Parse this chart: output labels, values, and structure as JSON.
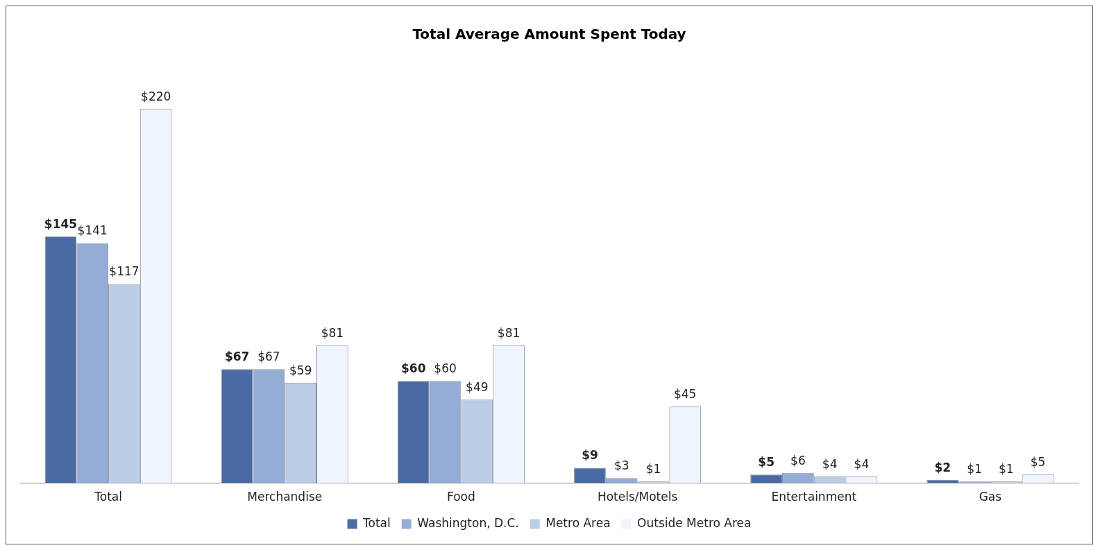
{
  "chart_data": {
    "type": "bar",
    "title": "Total Average Amount Spent Today",
    "categories": [
      "Total",
      "Merchandise",
      "Food",
      "Hotels/Motels",
      "Entertainment",
      "Gas"
    ],
    "series": [
      {
        "name": "Total",
        "color": "#4a6aa5",
        "values": [
          145,
          67,
          60,
          9,
          5,
          2
        ],
        "value_labels": [
          "$145",
          "$67",
          "$60",
          "$9",
          "$5",
          "$2"
        ]
      },
      {
        "name": "Washington, D.C.",
        "color": "#95acd6",
        "values": [
          141,
          67,
          60,
          3,
          6,
          1
        ],
        "value_labels": [
          "$141",
          "$67",
          "$60",
          "$3",
          "$6",
          "$1"
        ]
      },
      {
        "name": "Metro Area",
        "color": "#bccde6",
        "values": [
          117,
          59,
          49,
          1,
          4,
          1
        ],
        "value_labels": [
          "$117",
          "$59",
          "$49",
          "$1",
          "$4",
          "$1"
        ]
      },
      {
        "name": "Outside Metro Area",
        "color": "#eef5fd",
        "values": [
          220,
          81,
          81,
          45,
          4,
          5
        ],
        "value_labels": [
          "$220",
          "$81",
          "$81",
          "$45",
          "$4",
          "$5"
        ]
      }
    ],
    "tick_labels": "x",
    "grid": false,
    "legend": "bottom"
  }
}
